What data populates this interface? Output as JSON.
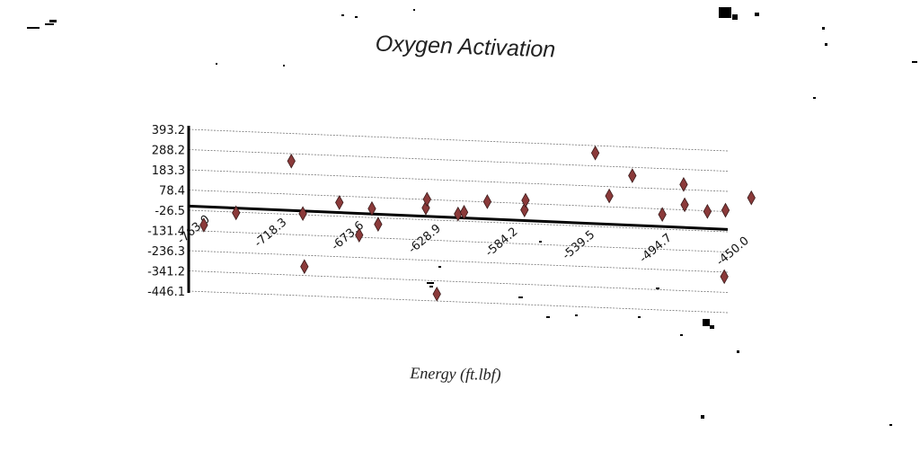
{
  "chart_data": {
    "type": "scatter",
    "title": "Oxygen Activation",
    "xlabel": "Energy (ft.lbf)",
    "ylabel": "",
    "xlim": [
      -763.0,
      -450.0
    ],
    "ylim": [
      -446.1,
      393.2
    ],
    "x_ticks": [
      "-763.0",
      "-718.3",
      "-673.6",
      "-628.9",
      "-584.2",
      "-539.5",
      "-494.7",
      "-450.0"
    ],
    "y_ticks": [
      "393.2",
      "288.2",
      "183.3",
      "78.4",
      "-26.5",
      "-131.4",
      "-236.3",
      "-341.2",
      "-446.1"
    ],
    "grid": "horizontal dashed lines",
    "legend": "none",
    "marker": "diamond",
    "marker_color": "#8b3a3a",
    "points": [
      {
        "x": -754.2,
        "y": -100
      },
      {
        "x": -735.5,
        "y": -30
      },
      {
        "x": -703.4,
        "y": 250
      },
      {
        "x": -696.7,
        "y": -20
      },
      {
        "x": -695.8,
        "y": -295
      },
      {
        "x": -675.5,
        "y": 45
      },
      {
        "x": -664.0,
        "y": -120
      },
      {
        "x": -656.6,
        "y": 20
      },
      {
        "x": -653.0,
        "y": -60
      },
      {
        "x": -625.3,
        "y": 35
      },
      {
        "x": -624.6,
        "y": 80
      },
      {
        "x": -618.9,
        "y": -410
      },
      {
        "x": -606.6,
        "y": 10
      },
      {
        "x": -603.1,
        "y": 20
      },
      {
        "x": -589.6,
        "y": 80
      },
      {
        "x": -568.0,
        "y": 45
      },
      {
        "x": -567.4,
        "y": 95
      },
      {
        "x": -526.9,
        "y": 355
      },
      {
        "x": -518.8,
        "y": 135
      },
      {
        "x": -505.4,
        "y": 245
      },
      {
        "x": -488.0,
        "y": 50
      },
      {
        "x": -475.6,
        "y": 210
      },
      {
        "x": -475.0,
        "y": 105
      },
      {
        "x": -461.8,
        "y": 75
      },
      {
        "x": -452.0,
        "y": -260
      },
      {
        "x": -451.3,
        "y": 85
      },
      {
        "x": -436.3,
        "y": 155
      }
    ]
  }
}
